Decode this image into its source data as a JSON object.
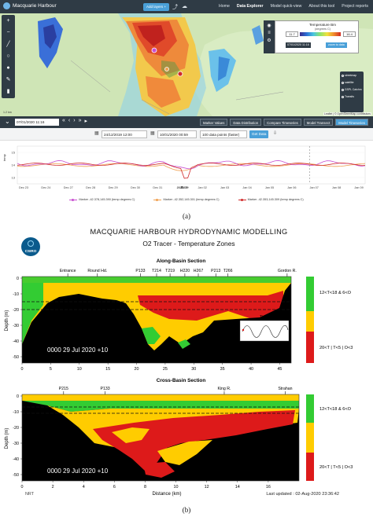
{
  "app": {
    "brand": "Macquarie Harbour",
    "add_layers": "Add layers",
    "nav": [
      "Home",
      "Data Explorer",
      "Model quick-view",
      "About this tool",
      "Project reports"
    ],
    "map": {
      "legend_title": "Temperature Bm",
      "legend_units": "(degrees C)",
      "legend_min": "11.7",
      "legend_max": "16.4",
      "legend_date": "07/01/2020 11:16",
      "legend_zoom": "zoom to data",
      "base_layers": [
        "streetmap",
        "satellite",
        "GSPL Catchm",
        "Transits"
      ],
      "attribution": "Leaflet | © OpenStreetMap contributors",
      "scale": "1.2 km"
    },
    "time": {
      "current": "07/01/2020 11:16",
      "view_buttons": [
        "Marker Values",
        "Data Distribution",
        "Compare Timeseries",
        "Model Transect",
        "Model Timeseries"
      ],
      "start": "24/12/2019 12:00",
      "end": "10/01/2020 00:59",
      "points": "100 data points (faster)",
      "get_data": "Get Data"
    },
    "timeseries": {
      "ylabel": "temp",
      "xlabel": "Date",
      "xticks": [
        "Dec 23",
        "Dec 24",
        "Dec 27",
        "Dec 28",
        "Dec 29",
        "Dec 30",
        "Dec 31",
        "2020",
        "Jan 02",
        "Jan 03",
        "Jan 04",
        "Jan 05",
        "Jan 06",
        "Jan 07",
        "Jan 08",
        "Jan 09"
      ],
      "yticks": [
        "15",
        "14",
        "13"
      ],
      "legend": [
        {
          "label": "Marker -42.378,145.390 (temp degrees C)",
          "color": "#c84fd0"
        },
        {
          "label": "Marker -42.352,145.301 (temp degrees C)",
          "color": "#f0a050"
        },
        {
          "label": "Marker -42.353,145.309 (temp degrees C)",
          "color": "#d02a2a"
        }
      ]
    }
  },
  "caption_a": "(a)",
  "caption_b": "(b)",
  "figure": {
    "title": "MACQUARIE HARBOUR HYDRODYNAMIC MODELLING",
    "subtitle": "O2 Tracer - Temperature Zones",
    "logo_text": "CSIRO",
    "along": {
      "title": "Along-Basin Section",
      "stations": [
        "Entrance",
        "Round Hd.",
        "P133",
        "T214",
        "T219",
        "H220",
        "H267",
        "P213",
        "T266",
        "Gordon R."
      ],
      "timestamp": "0000 29 Jul 2020 +10",
      "xticks": [
        "0",
        "5",
        "10",
        "15",
        "20",
        "25",
        "30",
        "35",
        "40",
        "45"
      ],
      "yticks": [
        "0",
        "-10",
        "-20",
        "-30",
        "-40",
        "-50"
      ],
      "ylabel": "Depth (m)",
      "tide_label": "Tide",
      "tide_yticks": [
        "0.6",
        "-0.2"
      ]
    },
    "cross": {
      "title": "Cross-Basin Section",
      "stations": [
        "P215",
        "P133",
        "King R.",
        "Strahan"
      ],
      "timestamp": "0000 29 Jul 2020 +10",
      "xticks": [
        "0",
        "2",
        "4",
        "6",
        "8",
        "10",
        "12",
        "14",
        "16"
      ],
      "yticks": [
        "0",
        "-10",
        "-20",
        "-30",
        "-40",
        "-50"
      ],
      "ylabel": "Depth (m)",
      "xlabel": "Distance (km)"
    },
    "zones": [
      {
        "label": "12<T<18 & 6<O",
        "color": "#33cc33"
      },
      {
        "label": "",
        "color": "#ffcc00"
      },
      {
        "label": "20<T | T<5 | O<3",
        "color": "#dd1a1a"
      }
    ],
    "nrt": "NRT",
    "updated": "Last updated : 02-Aug-2020 23:36:42"
  }
}
